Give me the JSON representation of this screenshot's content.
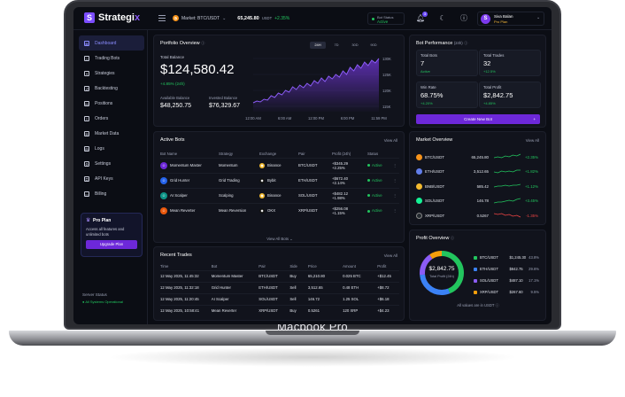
{
  "device_label": "Macbook Pro",
  "app": {
    "name_main": "Strategi",
    "name_accent": "x",
    "logo_letter": "S"
  },
  "topbar": {
    "market_label": "Market: BTC/USDT",
    "market_price": "65,245.80",
    "market_unit": "USDT",
    "market_change": "+2.35%",
    "bot_status_label": "Bot Status",
    "bot_status_value": "Active",
    "notif_count": "3",
    "user_name": "Siva Balan",
    "user_plan": "Pro Plan",
    "user_initial": "S"
  },
  "sidebar": {
    "items": [
      {
        "label": "Dashboard",
        "icon": "grid-icon"
      },
      {
        "label": "Trading Bots",
        "icon": "bot-icon"
      },
      {
        "label": "Strategies",
        "icon": "strategy-icon"
      },
      {
        "label": "Backtesting",
        "icon": "backtest-icon"
      },
      {
        "label": "Positions",
        "icon": "positions-icon"
      },
      {
        "label": "Orders",
        "icon": "orders-icon"
      },
      {
        "label": "Market Data",
        "icon": "market-data-icon"
      },
      {
        "label": "Logs",
        "icon": "logs-icon"
      },
      {
        "label": "Settings",
        "icon": "gear-icon"
      },
      {
        "label": "API Keys",
        "icon": "key-icon"
      },
      {
        "label": "Billing",
        "icon": "billing-icon"
      }
    ],
    "pro_title": "Pro Plan",
    "pro_text": "Access all features and unlimited bots",
    "pro_button": "Upgrade Plan",
    "server_title": "Server Status",
    "server_status": "All Systems Operational"
  },
  "portfolio": {
    "title": "Portfolio Overview",
    "tabs": [
      "24H",
      "7D",
      "30D",
      "90D"
    ],
    "active_tab": 0,
    "total_label": "Total Balance",
    "total_value": "$124,580.42",
    "total_change": "+4.85% (24h)",
    "available_label": "Available Balance",
    "available_value": "$48,250.75",
    "invested_label": "Invested Balance",
    "invested_value": "$76,329.67",
    "chart_y_ticks": [
      "130K",
      "125K",
      "120K",
      "115K"
    ],
    "chart_x_ticks": [
      "12:00 AM",
      "6:00 AM",
      "12:00 PM",
      "6:00 PM",
      "11:59 PM"
    ]
  },
  "bot_perf": {
    "title": "Bot Performance",
    "period": "(24h)",
    "stats": [
      {
        "label": "Total Bots",
        "value": "7",
        "change": "Active"
      },
      {
        "label": "Total Trades",
        "value": "32",
        "change": "+12.5%"
      },
      {
        "label": "Win Rate",
        "value": "68.75%",
        "change": "+4.20%"
      },
      {
        "label": "Total Profit",
        "value": "$2,842.75",
        "change": "+4.85%"
      }
    ],
    "create_button": "Create New Bot"
  },
  "active_bots": {
    "title": "Active Bots",
    "view_all": "View All",
    "columns": [
      "Bot Name",
      "Strategy",
      "Exchange",
      "Pair",
      "Profit (24h)",
      "Status"
    ],
    "rows": [
      {
        "name": "Momentum Master",
        "strategy": "Momentum",
        "exchange": "Binance",
        "pair": "BTC/USDT",
        "profit": "+$345.29",
        "profit_pct": "+2.25%",
        "status": "Active",
        "color": "#6d28d9",
        "ex_color": "#f3ba2f"
      },
      {
        "name": "Grid Hunter",
        "strategy": "Grid Trading",
        "exchange": "Bybit",
        "pair": "ETH/USDT",
        "profit": "+$672.40",
        "profit_pct": "+2.14%",
        "status": "Active",
        "color": "#2563eb",
        "ex_color": "#111"
      },
      {
        "name": "AI Scalper",
        "strategy": "Scalping",
        "exchange": "Binance",
        "pair": "SOL/USDT",
        "profit": "+$482.12",
        "profit_pct": "+1.98%",
        "status": "Active",
        "color": "#0d9488",
        "ex_color": "#f3ba2f"
      },
      {
        "name": "Mean Reverter",
        "strategy": "Mean Reversion",
        "exchange": "OKX",
        "pair": "XRP/USDT",
        "profit": "+$256.08",
        "profit_pct": "+1.15%",
        "status": "Active",
        "color": "#ea580c",
        "ex_color": "#111"
      }
    ],
    "view_all_bots": "View All Bots"
  },
  "market_overview": {
    "title": "Market Overview",
    "view_all": "View All",
    "rows": [
      {
        "pair": "BTC/USDT",
        "price": "65,245.80",
        "change": "+2.35%",
        "coin": "btc",
        "up": true,
        "spark": [
          3,
          4,
          3,
          5,
          4,
          6,
          5,
          7
        ]
      },
      {
        "pair": "ETH/USDT",
        "price": "3,512.65",
        "change": "+1.82%",
        "coin": "eth",
        "up": true,
        "spark": [
          4,
          3,
          5,
          4,
          5,
          4,
          6,
          6
        ]
      },
      {
        "pair": "BNB/USDT",
        "price": "585.42",
        "change": "+1.12%",
        "coin": "bnb",
        "up": true,
        "spark": [
          3,
          4,
          4,
          5,
          4,
          5,
          5,
          6
        ]
      },
      {
        "pair": "SOL/USDT",
        "price": "146.78",
        "change": "+3.45%",
        "coin": "sol",
        "up": true,
        "spark": [
          2,
          3,
          3,
          4,
          5,
          4,
          6,
          7
        ]
      },
      {
        "pair": "XRP/USDT",
        "price": "0.5267",
        "change": "-1.35%",
        "coin": "xrp",
        "up": false,
        "spark": [
          6,
          5,
          6,
          4,
          5,
          3,
          4,
          2
        ]
      }
    ]
  },
  "recent_trades": {
    "title": "Recent Trades",
    "view_all": "View All",
    "columns": [
      "Time",
      "Bot",
      "Pair",
      "Side",
      "Price",
      "Amount",
      "Profit"
    ],
    "rows": [
      {
        "time": "12 May 2025, 11:45:32",
        "bot": "Momentum Master",
        "pair": "BTC/USDT",
        "side": "Buy",
        "price": "65,210.80",
        "amount": "0.025 BTC",
        "profit": "+$12.45"
      },
      {
        "time": "12 May 2025, 11:32:18",
        "bot": "Grid Hunter",
        "pair": "ETH/USDT",
        "side": "Sell",
        "price": "3,512.65",
        "amount": "0.48 ETH",
        "profit": "+$8.72"
      },
      {
        "time": "12 May 2025, 11:20:45",
        "bot": "AI Scalper",
        "pair": "SOL/USDT",
        "side": "Sell",
        "price": "146.72",
        "amount": "1.25 SOL",
        "profit": "+$6.18"
      },
      {
        "time": "12 May 2025, 10:58:41",
        "bot": "Mean Reverter",
        "pair": "XRP/USDT",
        "side": "Buy",
        "price": "0.5261",
        "amount": "120 XRP",
        "profit": "+$4.23"
      }
    ]
  },
  "profit_overview": {
    "title": "Profit Overview",
    "total_value": "$2,842.75",
    "total_label": "Total Profit (24h)",
    "rows": [
      {
        "name": "BTC/USDT",
        "value": "$1,245.30",
        "pct": "43.8%",
        "share": 43.8,
        "color": "#22c55e"
      },
      {
        "name": "ETH/USDT",
        "value": "$842.75",
        "pct": "29.6%",
        "share": 29.6,
        "color": "#3b82f6"
      },
      {
        "name": "SOL/USDT",
        "value": "$487.10",
        "pct": "17.1%",
        "share": 17.1,
        "color": "#8b5cf6"
      },
      {
        "name": "XRP/USDT",
        "value": "$267.60",
        "pct": "9.5%",
        "share": 9.5,
        "color": "#f59e0b"
      }
    ],
    "footer": "All values are in USDT"
  }
}
